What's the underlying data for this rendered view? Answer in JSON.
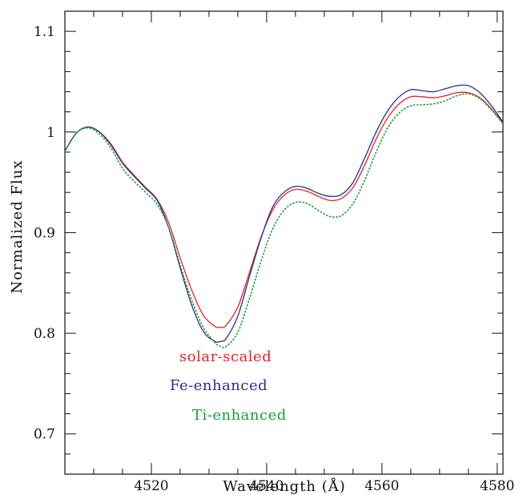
{
  "chart_data": {
    "type": "line",
    "title": "",
    "xlabel": "Wavelength (Å)",
    "ylabel": "Normalized Flux",
    "xlim": [
      4505,
      4581
    ],
    "ylim": [
      0.66,
      1.12
    ],
    "xticks": [
      4520,
      4540,
      4560,
      4580
    ],
    "xtick_labels": [
      "4520",
      "4540",
      "4560",
      "4580"
    ],
    "yticks": [
      0.7,
      0.8,
      0.9,
      1.0,
      1.1
    ],
    "ytick_labels": [
      "0.7",
      "0.8",
      "0.9",
      "1",
      "1.1"
    ],
    "grid": false,
    "legend_placement": "inside-lower-left",
    "series": [
      {
        "name": "solar-scaled",
        "color": "#e8202a",
        "style": "solid",
        "x": [
          4505,
          4507,
          4509,
          4511,
          4513,
          4515,
          4517,
          4519,
          4521,
          4523,
          4525,
          4527,
          4529,
          4531,
          4532,
          4533,
          4535,
          4537,
          4539,
          4541,
          4543,
          4545,
          4547,
          4549,
          4551,
          4553,
          4555,
          4557,
          4559,
          4561,
          4563,
          4565,
          4567,
          4569,
          4571,
          4573,
          4575,
          4577,
          4579,
          4581
        ],
        "y": [
          0.981,
          0.999,
          1.005,
          1.0,
          0.988,
          0.97,
          0.957,
          0.945,
          0.933,
          0.91,
          0.875,
          0.843,
          0.818,
          0.807,
          0.806,
          0.808,
          0.826,
          0.86,
          0.895,
          0.922,
          0.937,
          0.943,
          0.941,
          0.936,
          0.932,
          0.934,
          0.945,
          0.967,
          0.993,
          1.014,
          1.028,
          1.035,
          1.035,
          1.034,
          1.036,
          1.039,
          1.039,
          1.034,
          1.023,
          1.009
        ]
      },
      {
        "name": "Fe-enhanced",
        "color": "#2b2f8f",
        "style": "solid",
        "x": [
          4505,
          4507,
          4509,
          4511,
          4513,
          4515,
          4517,
          4519,
          4521,
          4523,
          4525,
          4527,
          4529,
          4531,
          4532,
          4533,
          4535,
          4537,
          4539,
          4541,
          4543,
          4545,
          4547,
          4549,
          4551,
          4553,
          4555,
          4557,
          4559,
          4561,
          4563,
          4565,
          4567,
          4569,
          4571,
          4573,
          4575,
          4577,
          4579,
          4581
        ],
        "y": [
          0.981,
          0.999,
          1.005,
          1.0,
          0.987,
          0.969,
          0.956,
          0.944,
          0.932,
          0.905,
          0.865,
          0.828,
          0.802,
          0.792,
          0.792,
          0.795,
          0.817,
          0.856,
          0.894,
          0.925,
          0.94,
          0.946,
          0.944,
          0.939,
          0.936,
          0.938,
          0.95,
          0.974,
          1.0,
          1.021,
          1.035,
          1.042,
          1.041,
          1.04,
          1.043,
          1.046,
          1.046,
          1.039,
          1.026,
          1.01
        ]
      },
      {
        "name": "Ti-enhanced",
        "color": "#1a9a3c",
        "style": "dotted",
        "x": [
          4505,
          4507,
          4509,
          4511,
          4513,
          4515,
          4517,
          4519,
          4521,
          4523,
          4525,
          4527,
          4529,
          4531,
          4532,
          4533,
          4535,
          4537,
          4539,
          4541,
          4543,
          4545,
          4547,
          4549,
          4551,
          4553,
          4555,
          4557,
          4559,
          4561,
          4563,
          4565,
          4567,
          4569,
          4571,
          4573,
          4575,
          4577,
          4579,
          4581
        ],
        "y": [
          0.981,
          0.999,
          1.004,
          0.998,
          0.984,
          0.964,
          0.951,
          0.94,
          0.928,
          0.905,
          0.868,
          0.833,
          0.806,
          0.791,
          0.787,
          0.787,
          0.801,
          0.834,
          0.871,
          0.903,
          0.922,
          0.93,
          0.929,
          0.922,
          0.916,
          0.917,
          0.929,
          0.952,
          0.98,
          1.004,
          1.019,
          1.026,
          1.027,
          1.028,
          1.031,
          1.036,
          1.038,
          1.033,
          1.022,
          1.008
        ]
      }
    ],
    "legend": [
      {
        "label": "solar-scaled",
        "color": "#e8202a"
      },
      {
        "label": "Fe-enhanced",
        "color": "#2b2f8f"
      },
      {
        "label": "Ti-enhanced",
        "color": "#1a9a3c"
      }
    ]
  }
}
